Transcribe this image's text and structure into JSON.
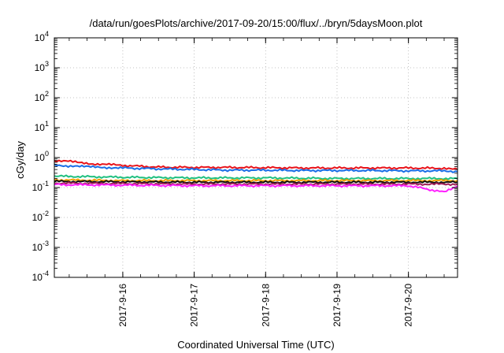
{
  "chart_data": {
    "type": "line",
    "title": "/data/run/goesPlots/archive/2017-09-20/15:00/flux/../bryn/5daysMoon.plot",
    "xlabel": "Coordinated Universal Time (UTC)",
    "ylabel": "cGy/day",
    "yscale": "log",
    "ylim": [
      0.0001,
      10000
    ],
    "y_ticks": [
      {
        "base": "10",
        "exp": "-4"
      },
      {
        "base": "10",
        "exp": "-3"
      },
      {
        "base": "10",
        "exp": "-2"
      },
      {
        "base": "10",
        "exp": "-1"
      },
      {
        "base": "10",
        "exp": "0"
      },
      {
        "base": "10",
        "exp": "1"
      },
      {
        "base": "10",
        "exp": "2"
      },
      {
        "base": "10",
        "exp": "3"
      },
      {
        "base": "10",
        "exp": "4"
      }
    ],
    "xlim": [
      "2017-09-15T01:00",
      "2017-09-20T16:30"
    ],
    "x_ticks": [
      "2017-9-16",
      "2017-9-17",
      "2017-9-18",
      "2017-9-19",
      "2017-9-20"
    ],
    "x_tick_dates": [
      "2017-09-16T00:00",
      "2017-09-17T00:00",
      "2017-09-18T00:00",
      "2017-09-19T00:00",
      "2017-09-20T00:00"
    ],
    "grid": true,
    "series": [
      {
        "color": "#e8141b",
        "x": [
          "2017-09-15T01:00",
          "2017-09-15T08:00",
          "2017-09-15T14:00",
          "2017-09-16T00:00",
          "2017-09-16T12:00",
          "2017-09-17T00:00",
          "2017-09-17T12:00",
          "2017-09-18T00:00",
          "2017-09-18T12:00",
          "2017-09-19T00:00",
          "2017-09-19T12:00",
          "2017-09-20T00:00",
          "2017-09-20T12:00",
          "2017-09-20T16:30"
        ],
        "y": [
          0.8,
          0.72,
          0.62,
          0.55,
          0.48,
          0.47,
          0.47,
          0.46,
          0.45,
          0.45,
          0.45,
          0.45,
          0.44,
          0.4
        ]
      },
      {
        "color": "#1a6ee6",
        "x": [
          "2017-09-15T01:00",
          "2017-09-15T08:00",
          "2017-09-15T14:00",
          "2017-09-16T00:00",
          "2017-09-16T12:00",
          "2017-09-17T00:00",
          "2017-09-17T12:00",
          "2017-09-18T00:00",
          "2017-09-18T12:00",
          "2017-09-19T00:00",
          "2017-09-19T12:00",
          "2017-09-20T00:00",
          "2017-09-20T12:00",
          "2017-09-20T16:30"
        ],
        "y": [
          0.55,
          0.52,
          0.48,
          0.45,
          0.42,
          0.4,
          0.38,
          0.38,
          0.37,
          0.37,
          0.37,
          0.36,
          0.36,
          0.34
        ]
      },
      {
        "color": "#20c080",
        "x": [
          "2017-09-15T01:00",
          "2017-09-16T00:00",
          "2017-09-17T00:00",
          "2017-09-18T00:00",
          "2017-09-19T00:00",
          "2017-09-20T00:00",
          "2017-09-20T16:30"
        ],
        "y": [
          0.24,
          0.22,
          0.21,
          0.21,
          0.2,
          0.2,
          0.2
        ]
      },
      {
        "color": "#f0a000",
        "x": [
          "2017-09-15T01:00",
          "2017-09-16T00:00",
          "2017-09-17T00:00",
          "2017-09-18T00:00",
          "2017-09-19T00:00",
          "2017-09-20T00:00",
          "2017-09-20T16:30"
        ],
        "y": [
          0.18,
          0.17,
          0.17,
          0.17,
          0.17,
          0.17,
          0.17
        ]
      },
      {
        "color": "#101010",
        "x": [
          "2017-09-15T01:00",
          "2017-09-16T00:00",
          "2017-09-17T00:00",
          "2017-09-18T00:00",
          "2017-09-19T00:00",
          "2017-09-20T00:00",
          "2017-09-20T16:30"
        ],
        "y": [
          0.16,
          0.155,
          0.15,
          0.15,
          0.15,
          0.15,
          0.15
        ]
      },
      {
        "color": "#a0205a",
        "x": [
          "2017-09-15T01:00",
          "2017-09-16T00:00",
          "2017-09-17T00:00",
          "2017-09-18T00:00",
          "2017-09-19T00:00",
          "2017-09-20T00:00",
          "2017-09-20T16:30"
        ],
        "y": [
          0.14,
          0.135,
          0.13,
          0.13,
          0.13,
          0.13,
          0.13
        ]
      },
      {
        "color": "#ff20ff",
        "x": [
          "2017-09-15T01:00",
          "2017-09-16T00:00",
          "2017-09-17T00:00",
          "2017-09-18T00:00",
          "2017-09-19T00:00",
          "2017-09-20T00:00",
          "2017-09-20T12:00",
          "2017-09-20T16:30"
        ],
        "y": [
          0.125,
          0.12,
          0.115,
          0.115,
          0.115,
          0.115,
          0.07,
          0.11
        ]
      }
    ]
  }
}
